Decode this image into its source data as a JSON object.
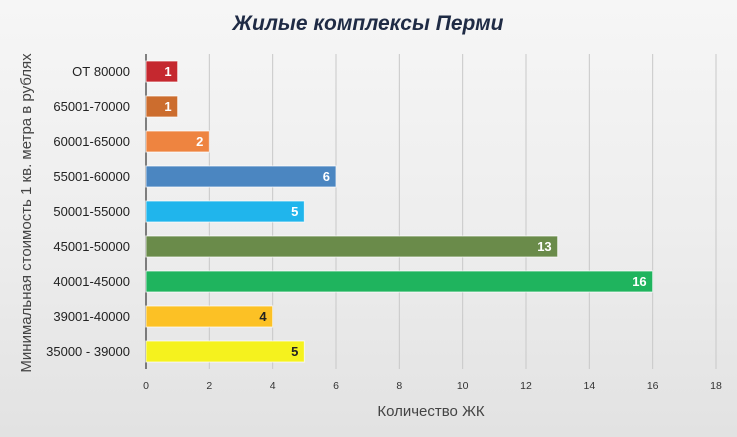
{
  "chart_data": {
    "type": "bar",
    "orientation": "horizontal",
    "title": "Жилые комплексы Перми",
    "xlabel": "Количество ЖК",
    "ylabel": "Минимальная стоимость 1 кв. метра в рублях",
    "categories": [
      "ОТ 80000",
      "65001-70000",
      "60001-65000",
      "55001-60000",
      "50001-55000",
      "45001-50000",
      "40001-45000",
      "39001-40000",
      "35000 - 39000"
    ],
    "values": [
      1,
      1,
      2,
      6,
      5,
      13,
      16,
      4,
      5
    ],
    "colors": [
      "#c5282f",
      "#cc6d2e",
      "#ee8440",
      "#4b86c1",
      "#20b5ec",
      "#6a8b4a",
      "#1fb45e",
      "#fcc125",
      "#f5f21e"
    ],
    "label_colors": [
      "#ffffff",
      "#ffffff",
      "#ffffff",
      "#ffffff",
      "#ffffff",
      "#ffffff",
      "#ffffff",
      "#222222",
      "#222222"
    ],
    "xlim": [
      0,
      18
    ],
    "xticks": [
      0,
      2,
      4,
      6,
      8,
      10,
      12,
      14,
      16,
      18
    ],
    "grid": "vertical",
    "legend": "none"
  }
}
